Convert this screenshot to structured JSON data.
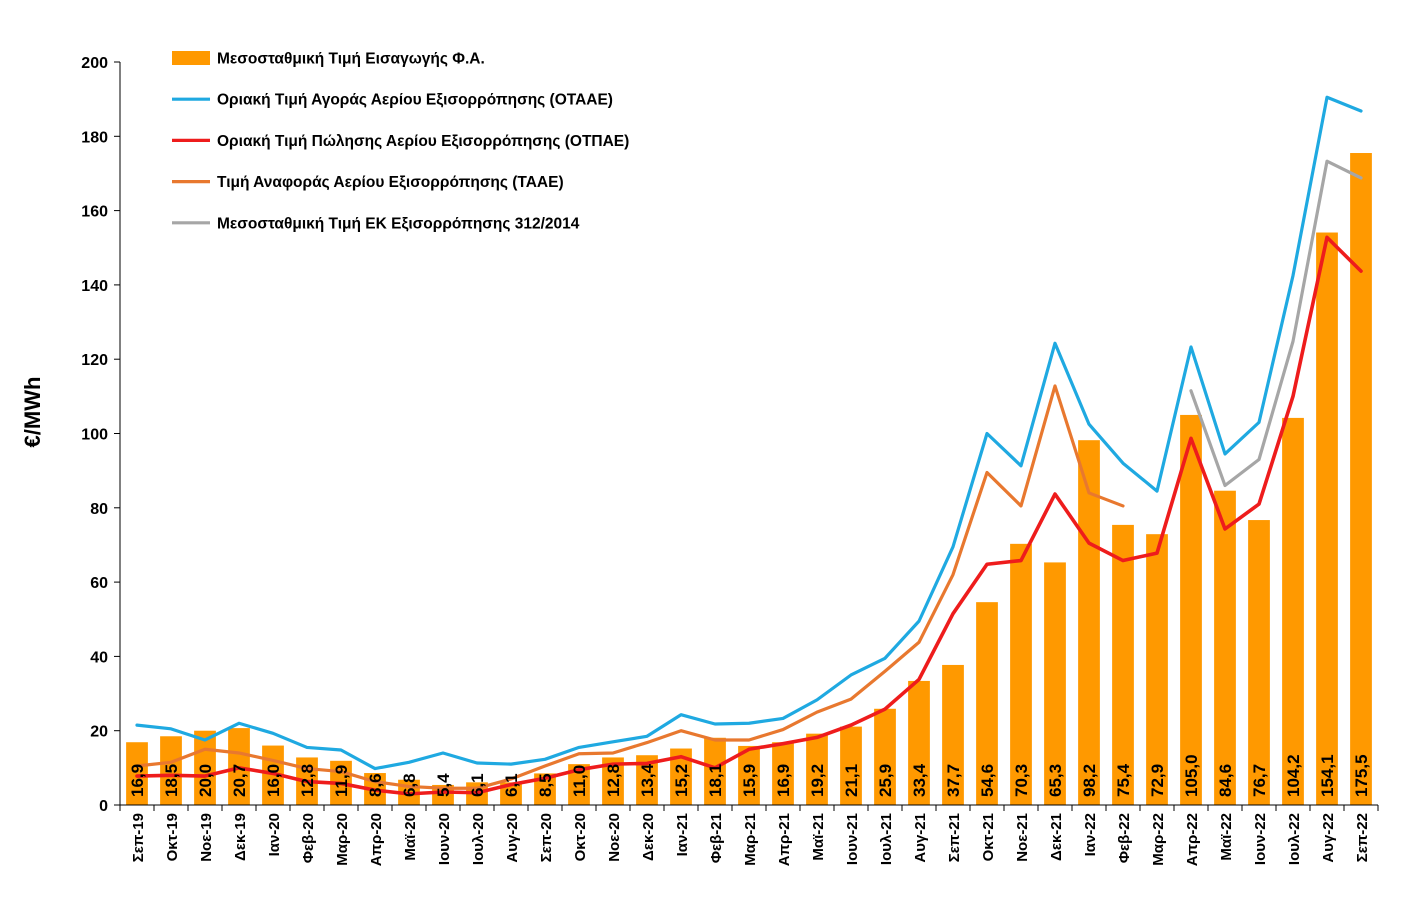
{
  "chart_data": {
    "type": "bar",
    "title": "",
    "xlabel": "",
    "ylabel": "€/MWh",
    "ylim": [
      0,
      200
    ],
    "yticks": [
      "0",
      "20",
      "40",
      "60",
      "80",
      "100",
      "120",
      "140",
      "160",
      "180",
      "200"
    ],
    "grid": false,
    "legend_placement": "top-left",
    "categories": [
      "Σεπ-19",
      "Οκτ-19",
      "Νοε-19",
      "Δεκ-19",
      "Ιαν-20",
      "Φεβ-20",
      "Μαρ-20",
      "Απρ-20",
      "Μαϊ-20",
      "Ιουν-20",
      "Ιουλ-20",
      "Αυγ-20",
      "Σεπ-20",
      "Οκτ-20",
      "Νοε-20",
      "Δεκ-20",
      "Ιαν-21",
      "Φεβ-21",
      "Μαρ-21",
      "Απρ-21",
      "Μαϊ-21",
      "Ιουν-21",
      "Ιουλ-21",
      "Αυγ-21",
      "Σεπ-21",
      "Οκτ-21",
      "Νοε-21",
      "Δεκ-21",
      "Ιαν-22",
      "Φεβ-22",
      "Μαρ-22",
      "Απρ-22",
      "Μαϊ-22",
      "Ιουν-22",
      "Ιουλ-22",
      "Αυγ-22",
      "Σεπ-22"
    ],
    "bar_series": {
      "name": "Μεσοσταθμική Τιμή Εισαγωγής Φ.Α.",
      "color": "#FF9900",
      "values": [
        16.9,
        18.5,
        20.0,
        20.7,
        16.0,
        12.8,
        11.9,
        8.6,
        6.8,
        5.4,
        6.1,
        6.1,
        8.5,
        11.0,
        12.8,
        13.4,
        15.2,
        18.1,
        15.9,
        16.9,
        19.2,
        21.1,
        25.9,
        33.4,
        37.7,
        54.6,
        70.3,
        65.3,
        98.2,
        75.4,
        72.9,
        105.0,
        84.6,
        76.7,
        104.2,
        154.1,
        175.5
      ],
      "labels": [
        "16,9",
        "18,5",
        "20,0",
        "20,7",
        "16,0",
        "12,8",
        "11,9",
        "8,6",
        "6,8",
        "5,4",
        "6,1",
        "6,1",
        "8,5",
        "11,0",
        "12,8",
        "13,4",
        "15,2",
        "18,1",
        "15,9",
        "16,9",
        "19,2",
        "21,1",
        "25,9",
        "33,4",
        "37,7",
        "54,6",
        "70,3",
        "65,3",
        "98,2",
        "75,4",
        "72,9",
        "105,0",
        "84,6",
        "76,7",
        "104,2",
        "154,1",
        "175,5"
      ]
    },
    "series": [
      {
        "name": "Οριακή Τιμή Αγοράς Αερίου Εξισορρόπησης  (ΟΤΑΑΕ)",
        "color": "#1FA9E1",
        "values": [
          21.5,
          20.5,
          17.5,
          22.0,
          19.3,
          15.5,
          14.8,
          9.8,
          11.5,
          14.0,
          11.3,
          11.0,
          12.3,
          15.5,
          17.0,
          18.5,
          24.3,
          21.8,
          22.0,
          23.3,
          28.3,
          35.0,
          39.5,
          49.5,
          69.5,
          100.0,
          91.3,
          124.3,
          102.5,
          92.0,
          84.5,
          123.3,
          94.5,
          103.0,
          142.5,
          190.5,
          186.8
        ]
      },
      {
        "name": "Οριακή Τιμή Πώλησης Αερίου Εξισορρόπησης (ΟΤΠΑΕ)",
        "color": "#EE1C1C",
        "values": [
          7.8,
          8.0,
          7.8,
          10.0,
          8.5,
          6.3,
          5.8,
          4.0,
          3.0,
          3.5,
          3.3,
          5.5,
          7.2,
          9.5,
          11.0,
          11.2,
          13.0,
          10.0,
          15.0,
          16.5,
          18.2,
          21.5,
          25.8,
          33.8,
          51.5,
          64.8,
          65.8,
          83.7,
          70.5,
          65.8,
          67.8,
          98.7,
          74.3,
          81.0,
          110.0,
          152.8,
          143.7
        ]
      },
      {
        "name": "Τιμή Αναφοράς Αερίου Εξισορρόπησης (ΤΑΑΕ)",
        "color": "#E8782F",
        "values": [
          10.5,
          11.5,
          15.0,
          14.0,
          12.0,
          9.8,
          9.0,
          6.3,
          5.0,
          4.5,
          4.5,
          7.0,
          10.5,
          13.8,
          14.0,
          16.8,
          20.0,
          17.5,
          17.5,
          20.3,
          25.0,
          28.5,
          36.0,
          43.8,
          62.0,
          89.5,
          80.5,
          112.8,
          84.0,
          80.5,
          null,
          null,
          null,
          null,
          null,
          null,
          null
        ]
      },
      {
        "name": "Μεσοσταθμική Τιμή ΕΚ Εξισορρόπησης 312/2014",
        "color": "#A6A6A6",
        "values": [
          null,
          null,
          null,
          null,
          null,
          null,
          null,
          null,
          null,
          null,
          null,
          null,
          null,
          null,
          null,
          null,
          null,
          null,
          null,
          null,
          null,
          null,
          null,
          null,
          null,
          null,
          null,
          null,
          83.5,
          null,
          null,
          111.5,
          86.0,
          93.0,
          124.8,
          173.3,
          168.8
        ]
      }
    ]
  }
}
